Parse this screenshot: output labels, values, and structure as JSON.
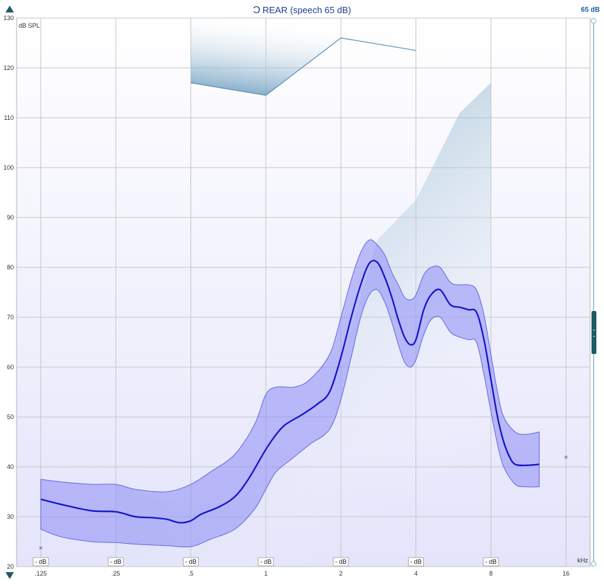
{
  "header": {
    "ear_icon": "ear-icon",
    "title": "REAR (speech 65 dB)",
    "level_readout": "65 dB"
  },
  "controls": {
    "scroll_up_icon": "triangle-up-icon",
    "scroll_down_icon": "triangle-down-icon"
  },
  "chart_data": {
    "type": "line",
    "ylabel": "dB SPL",
    "xlabel": "kHz",
    "x_scale": "log",
    "ylim": [
      20,
      130
    ],
    "yticks": [
      20,
      30,
      40,
      50,
      60,
      70,
      80,
      90,
      100,
      110,
      120,
      130
    ],
    "xticks": [
      {
        "value": 0.125,
        "label": ".125"
      },
      {
        "value": 0.25,
        "label": ".25"
      },
      {
        "value": 0.5,
        "label": ".5"
      },
      {
        "value": 1,
        "label": "1"
      },
      {
        "value": 2,
        "label": "2"
      },
      {
        "value": 4,
        "label": "4"
      },
      {
        "value": 8,
        "label": "8"
      },
      {
        "value": 16,
        "label": "16"
      }
    ],
    "grid": true,
    "db_markers": {
      "label": "- dB",
      "x": [
        0.125,
        0.25,
        0.5,
        1,
        2,
        4,
        8
      ]
    },
    "colors": {
      "curve": "#1414c8",
      "band_fill": "#8c8cf5",
      "band_edge": "#6666e0",
      "region": "#6fa3c4",
      "grid": "#c6c6c6",
      "marker": "#3d3dc8"
    },
    "series": [
      {
        "kind": "curve",
        "x": [
          0.125,
          0.15,
          0.2,
          0.25,
          0.3,
          0.35,
          0.4,
          0.45,
          0.5,
          0.55,
          0.65,
          0.75,
          0.85,
          1.0,
          1.1,
          1.2,
          1.4,
          1.6,
          1.8,
          2.0,
          2.2,
          2.4,
          2.6,
          2.8,
          3.0,
          3.2,
          3.4,
          3.6,
          3.8,
          4.0,
          4.3,
          4.6,
          5.0,
          5.5,
          6.0,
          6.5,
          7.0,
          7.5,
          8.0,
          8.5,
          9.0,
          9.5,
          10.0,
          11.0,
          12.5
        ],
        "y": [
          33.5,
          32.5,
          31.2,
          31.0,
          30.0,
          29.8,
          29.5,
          28.8,
          29.2,
          30.5,
          32.0,
          34.0,
          37.5,
          43.5,
          46.5,
          48.5,
          50.5,
          52.5,
          55.0,
          62.0,
          70.0,
          76.5,
          80.8,
          81.0,
          78.0,
          74.0,
          69.5,
          66.0,
          64.5,
          65.5,
          71.5,
          74.5,
          75.5,
          72.5,
          72.0,
          71.5,
          71.0,
          65.5,
          57.5,
          50.0,
          45.0,
          42.0,
          40.5,
          40.3,
          40.5
        ]
      },
      {
        "kind": "band_upper",
        "x": [
          0.125,
          0.15,
          0.2,
          0.25,
          0.3,
          0.4,
          0.5,
          0.6,
          0.75,
          0.9,
          1.0,
          1.1,
          1.3,
          1.5,
          1.8,
          2.0,
          2.2,
          2.4,
          2.6,
          2.8,
          3.0,
          3.2,
          3.4,
          3.6,
          3.8,
          4.0,
          4.3,
          4.6,
          5.0,
          5.5,
          6.0,
          6.5,
          7.0,
          7.5,
          8.0,
          8.5,
          9.0,
          10.0,
          11.0,
          12.5
        ],
        "y": [
          37.5,
          37.0,
          36.5,
          36.5,
          35.5,
          35.0,
          36.5,
          39.0,
          42.5,
          48.5,
          54.5,
          56.0,
          56.0,
          57.5,
          62.5,
          70.0,
          77.5,
          83.0,
          85.5,
          84.5,
          82.5,
          79.0,
          76.5,
          74.0,
          73.5,
          74.5,
          78.5,
          80.0,
          80.0,
          77.0,
          76.5,
          76.5,
          75.5,
          70.5,
          62.5,
          55.0,
          50.0,
          47.0,
          46.5,
          47.0
        ]
      },
      {
        "kind": "band_lower",
        "x": [
          0.125,
          0.15,
          0.2,
          0.25,
          0.3,
          0.4,
          0.5,
          0.6,
          0.75,
          0.9,
          1.0,
          1.1,
          1.3,
          1.5,
          1.8,
          2.0,
          2.2,
          2.4,
          2.6,
          2.8,
          3.0,
          3.2,
          3.4,
          3.6,
          3.8,
          4.0,
          4.3,
          4.6,
          5.0,
          5.5,
          6.0,
          6.5,
          7.0,
          7.5,
          8.0,
          8.5,
          9.0,
          10.0,
          11.0,
          12.5
        ],
        "y": [
          27.5,
          26.0,
          25.0,
          24.8,
          24.5,
          24.2,
          24.0,
          25.5,
          27.5,
          31.5,
          35.5,
          39.0,
          42.0,
          44.5,
          47.5,
          53.5,
          62.0,
          70.0,
          74.5,
          75.5,
          73.0,
          69.0,
          64.5,
          61.0,
          60.0,
          61.5,
          66.5,
          69.5,
          70.0,
          67.0,
          66.0,
          65.5,
          65.0,
          58.5,
          51.0,
          44.5,
          40.0,
          36.5,
          36.0,
          36.0
        ]
      },
      {
        "kind": "region_upper",
        "x": [
          0.5,
          1.0,
          2.0,
          4.0
        ],
        "y": [
          117.0,
          114.5,
          126.0,
          123.5
        ]
      },
      {
        "kind": "region_lower",
        "x": [
          0.25,
          0.5,
          1.0,
          1.6,
          2.0,
          2.8,
          4.0,
          6.0,
          8.0
        ],
        "y": [
          36.5,
          31.5,
          34.5,
          40.5,
          60.0,
          85.5,
          93.5,
          111.0,
          117.0
        ]
      },
      {
        "kind": "markers",
        "x": [
          0.125,
          16.0
        ],
        "y": [
          23.8,
          42.0
        ]
      }
    ]
  }
}
